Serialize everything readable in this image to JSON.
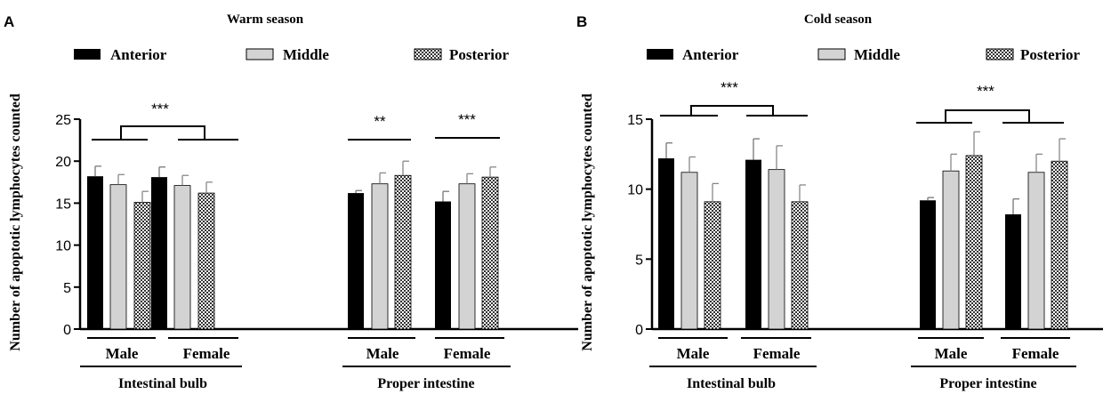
{
  "chart_data": [
    {
      "panel_label": "A",
      "type": "bar",
      "title": "Warm season",
      "ylabel": "Number of apoptotic lymphocytes counted",
      "ylim": [
        0,
        25
      ],
      "yticks": [
        "0",
        "5",
        "10",
        "15",
        "20",
        "25"
      ],
      "grid": false,
      "legend_placement": "top",
      "series": [
        {
          "name": "Anterior",
          "pattern": "solid-black",
          "values": [
            18.2,
            18.1,
            16.2,
            15.2
          ],
          "errors": [
            1.2,
            1.2,
            0.3,
            1.2
          ]
        },
        {
          "name": "Middle",
          "pattern": "light-gray",
          "values": [
            17.2,
            17.1,
            17.3,
            17.3
          ],
          "errors": [
            1.2,
            1.2,
            1.3,
            1.2
          ]
        },
        {
          "name": "Posterior",
          "pattern": "checkered",
          "values": [
            15.1,
            16.2,
            18.3,
            18.1
          ],
          "errors": [
            1.3,
            1.3,
            1.7,
            1.2
          ]
        }
      ],
      "group_labels": [
        "Male",
        "Female",
        "Male",
        "Female"
      ],
      "section_labels": [
        "Intestinal bulb",
        "Proper intestine"
      ],
      "significance": [
        "***",
        "**",
        "***"
      ]
    },
    {
      "panel_label": "B",
      "type": "bar",
      "title": "Cold season",
      "ylabel": "Number of apoptotic lymphocytes counted",
      "ylim": [
        0,
        15
      ],
      "yticks": [
        "0",
        "5",
        "10",
        "15"
      ],
      "grid": false,
      "legend_placement": "top",
      "series": [
        {
          "name": "Anterior",
          "pattern": "solid-black",
          "values": [
            12.2,
            12.1,
            9.2,
            8.2
          ],
          "errors": [
            1.1,
            1.5,
            0.2,
            1.1
          ]
        },
        {
          "name": "Middle",
          "pattern": "light-gray",
          "values": [
            11.2,
            11.4,
            11.3,
            11.2
          ],
          "errors": [
            1.1,
            1.7,
            1.2,
            1.3
          ]
        },
        {
          "name": "Posterior",
          "pattern": "checkered",
          "values": [
            9.1,
            9.1,
            12.4,
            12.0
          ],
          "errors": [
            1.3,
            1.2,
            1.7,
            1.6
          ]
        }
      ],
      "group_labels": [
        "Male",
        "Female",
        "Male",
        "Female"
      ],
      "section_labels": [
        "Intestinal bulb",
        "Proper intestine"
      ],
      "significance": [
        "***",
        "***"
      ]
    }
  ],
  "colors": {
    "anterior": "#000000",
    "middle": "#d3d3d3",
    "posterior_checker_dark": "#333333",
    "posterior_checker_light": "#ffffff",
    "axis": "#000000"
  }
}
